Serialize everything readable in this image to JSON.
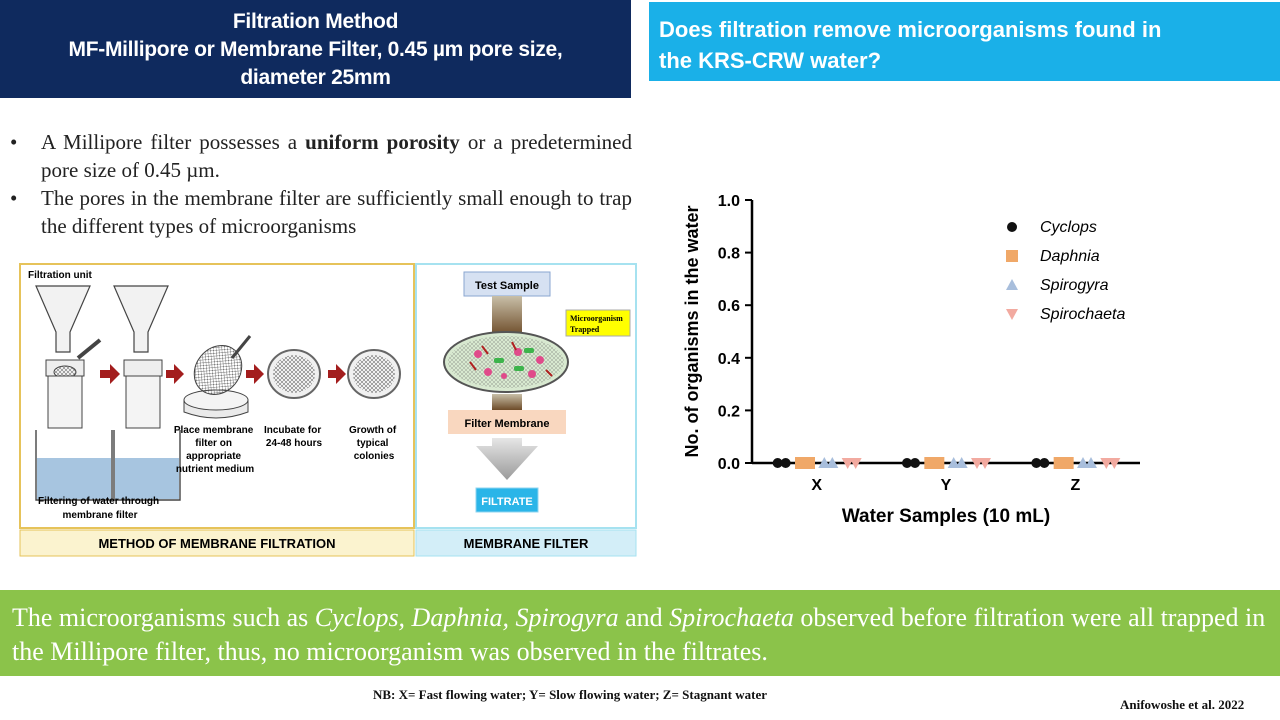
{
  "header": {
    "title_line1": "Filtration Method",
    "title_line2": "MF-Millipore or Membrane Filter, 0.45 µm pore size,",
    "title_line3": "diameter 25mm",
    "question_line1": "Does filtration remove microorganisms found in",
    "question_line2": "the KRS-CRW water?"
  },
  "bullets": {
    "b1_pre": "A Millipore filter possesses a ",
    "b1_bold": "uniform porosity",
    "b1_post": " or a predetermined pore size of 0.45 µm.",
    "b2": "The pores in the membrane filter are sufficiently small enough to trap the different types of microorganisms"
  },
  "diagram": {
    "unit_label": "Filtration unit",
    "step_place": [
      "Place membrane",
      "filter on",
      "appropriate",
      "nutrient medium"
    ],
    "step_incubate": [
      "Incubate for",
      "24-48 hours"
    ],
    "step_growth": [
      "Growth of",
      "typical",
      "colonies"
    ],
    "filtering_label": [
      "Filtering of water through",
      "membrane filter"
    ],
    "method_caption": "METHOD OF MEMBRANE FILTRATION",
    "test_sample": "Test Sample",
    "trapped_label": [
      "Microorganism",
      "Trapped"
    ],
    "filter_membrane": "Filter Membrane",
    "filtrate": "FILTRATE",
    "membrane_caption": "MEMBRANE FILTER"
  },
  "summary": {
    "t1": "The microorganisms such as ",
    "i1": "Cyclops, Daphnia, Spirogyra",
    "t2": " and ",
    "i2": "Spirochaeta",
    "t3": " observed before filtration were all trapped in the Millipore filter, thus, no microorganism was observed in the filtrates."
  },
  "footer": {
    "nb": "NB: X= Fast flowing water; Y= Slow flowing water; Z= Stagnant water",
    "credit": "Anifowoshe et al. 2022"
  },
  "chart_data": {
    "type": "scatter",
    "categories": [
      "X",
      "Y",
      "Z"
    ],
    "xlabel": "Water Samples (10 mL)",
    "ylabel": "No. of organisms in the water",
    "ylim": [
      0,
      1.0
    ],
    "yticks": [
      "0.0",
      "0.2",
      "0.4",
      "0.6",
      "0.8",
      "1.0"
    ],
    "legend_position": "top-right",
    "series": [
      {
        "name": "Cyclops",
        "marker": "circle",
        "color": "#111111",
        "values": [
          [
            0,
            0
          ],
          [
            0,
            0
          ],
          [
            0,
            0
          ]
        ]
      },
      {
        "name": "Daphnia",
        "marker": "square",
        "color": "#f0a868",
        "values": [
          [
            0,
            0
          ],
          [
            0,
            0
          ],
          [
            0,
            0
          ]
        ]
      },
      {
        "name": "Spirogyra",
        "marker": "triangle",
        "color": "#a8bedc",
        "values": [
          [
            0,
            0
          ],
          [
            0,
            0
          ],
          [
            0,
            0
          ]
        ]
      },
      {
        "name": "Spirochaeta",
        "marker": "triangle-down",
        "color": "#f2aaa0",
        "values": [
          [
            0,
            0
          ],
          [
            0,
            0
          ],
          [
            0,
            0
          ]
        ]
      }
    ]
  }
}
